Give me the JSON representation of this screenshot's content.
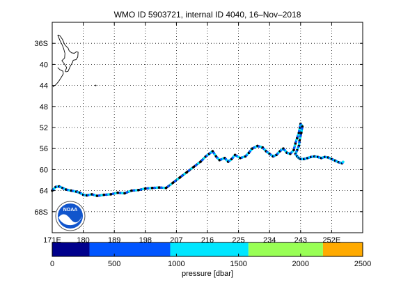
{
  "chart_data": {
    "type": "map-track",
    "title": "WMO ID 5903721, internal ID 4040, 16–Nov–2018",
    "x_axis": {
      "range": [
        171,
        261
      ],
      "tick_values": [
        171,
        180,
        189,
        198,
        207,
        216,
        225,
        234,
        243,
        252
      ],
      "tick_labels": [
        "171E",
        "180",
        "189",
        "198",
        "207",
        "216",
        "225",
        "234",
        "243",
        "252E"
      ]
    },
    "y_axis": {
      "range": [
        -72,
        -32
      ],
      "tick_values": [
        -36,
        -40,
        -44,
        -48,
        -52,
        -56,
        -60,
        -64,
        -68
      ],
      "tick_labels": [
        "36S",
        "40",
        "44",
        "48",
        "52",
        "56",
        "60",
        "64",
        "68S"
      ]
    },
    "grid": true,
    "track": {
      "lon": [
        171.0,
        172.0,
        173.0,
        174.0,
        175.0,
        176.5,
        178.0,
        179.0,
        180.0,
        181.0,
        182.5,
        184.0,
        186.0,
        188.0,
        190.0,
        192.0,
        194.0,
        196.0,
        198.0,
        200.0,
        202.0,
        204.0,
        206.0,
        208.0,
        210.0,
        212.0,
        214.0,
        215.5,
        216.5,
        217.5,
        218.5,
        219.5,
        221.0,
        222.0,
        223.0,
        224.0,
        225.5,
        227.0,
        228.0,
        229.0,
        230.5,
        232.0,
        233.0,
        234.0,
        235.0,
        236.0,
        237.0,
        238.0,
        239.0,
        240.0,
        241.0,
        241.5,
        242.0,
        242.5,
        242.8,
        243.0,
        243.5,
        243.2,
        242.7,
        242.5,
        242.0,
        241.5,
        242.0,
        242.5,
        243.0,
        244.0,
        245.0,
        246.0,
        247.0,
        248.0,
        249.0,
        250.0,
        251.0,
        252.0,
        253.0,
        254.0,
        255.0,
        255.5
      ],
      "lat": [
        -64.0,
        -63.3,
        -63.2,
        -63.5,
        -63.8,
        -64.0,
        -64.2,
        -64.4,
        -64.8,
        -64.9,
        -64.7,
        -65.0,
        -64.8,
        -64.7,
        -64.4,
        -64.5,
        -64.0,
        -63.9,
        -63.6,
        -63.5,
        -63.4,
        -63.5,
        -62.5,
        -61.5,
        -60.5,
        -59.5,
        -58.5,
        -57.5,
        -57.0,
        -56.5,
        -57.5,
        -58.2,
        -57.8,
        -58.5,
        -58.0,
        -57.2,
        -57.8,
        -57.5,
        -56.8,
        -56.0,
        -55.5,
        -55.8,
        -56.5,
        -57.0,
        -57.5,
        -57.2,
        -56.5,
        -56.0,
        -56.8,
        -57.0,
        -56.3,
        -55.0,
        -54.0,
        -53.0,
        -52.0,
        -51.3,
        -51.8,
        -53.0,
        -54.5,
        -55.5,
        -56.3,
        -57.0,
        -57.5,
        -57.8,
        -58.0,
        -58.0,
        -57.8,
        -57.6,
        -57.5,
        -57.6,
        -57.8,
        -57.6,
        -57.7,
        -58.0,
        -58.3,
        -58.6,
        -58.8,
        -58.4
      ]
    },
    "colorbar": {
      "label": "pressure [dbar]",
      "tick_values": [
        0,
        500,
        1000,
        1500,
        2000,
        2500
      ],
      "segment_edges": [
        0,
        300,
        950,
        1580,
        2180,
        2500
      ],
      "colors": [
        "#00008c",
        "#0055ff",
        "#00e6ff",
        "#99ff55",
        "#ffaa00"
      ]
    },
    "point_colors": [
      "#000000",
      "#0055ff",
      "#00e6ff"
    ],
    "coastline_color": "#000000"
  }
}
